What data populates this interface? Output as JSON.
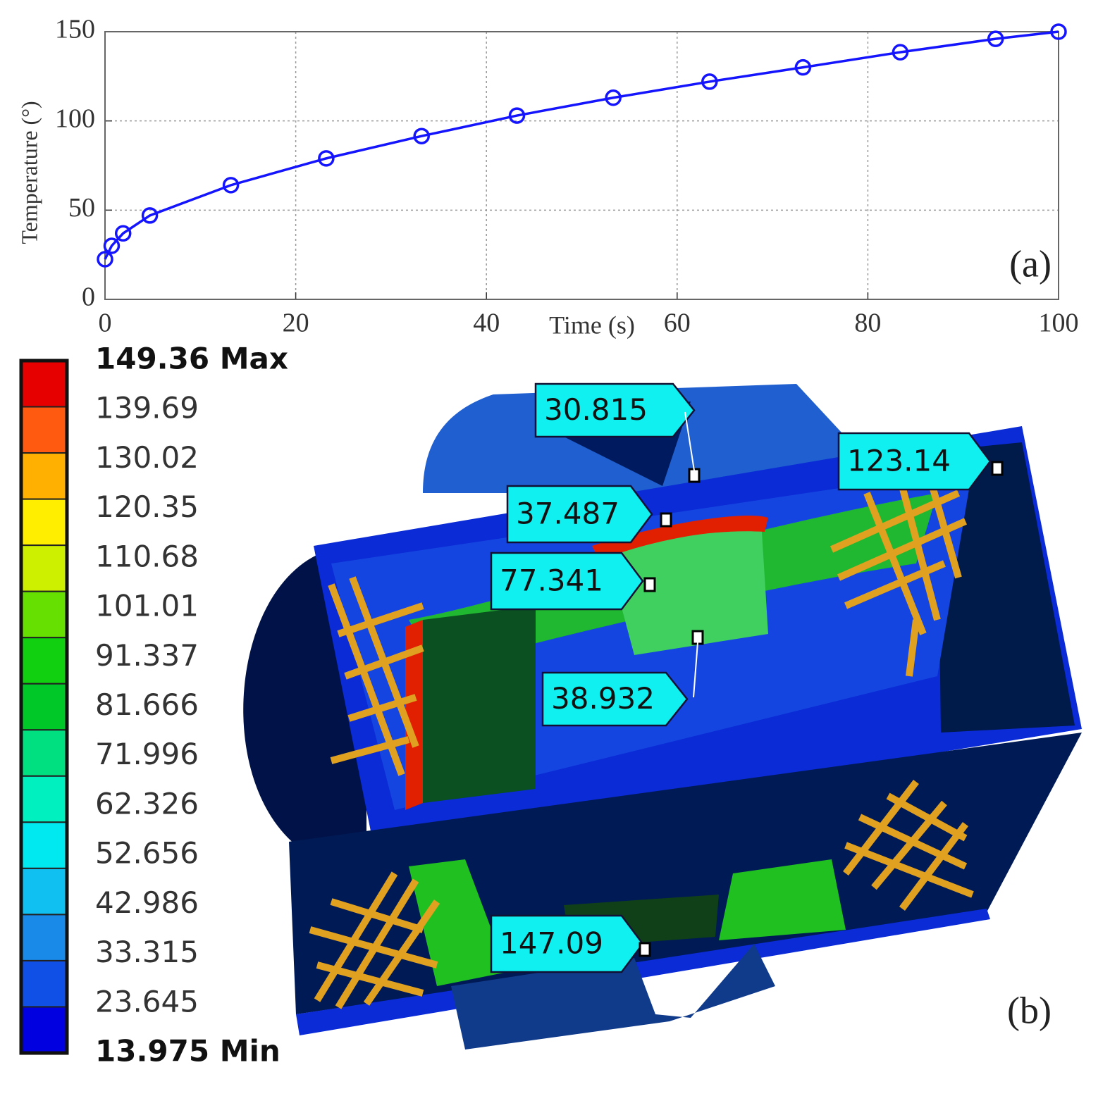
{
  "chart_data": {
    "type": "line",
    "x_label": "Time (s)",
    "y_label": "Temperature (°)",
    "panel_label": "(a)",
    "x": [
      0,
      0.7,
      1.9,
      4.7,
      13.2,
      23.2,
      33.2,
      43.2,
      53.3,
      63.4,
      73.2,
      83.4,
      93.4,
      100
    ],
    "values": [
      22.5,
      30,
      37,
      47,
      64,
      79,
      91.5,
      103,
      113,
      122,
      130,
      138.5,
      146,
      150
    ],
    "color": "#1414ff",
    "xlim": [
      0,
      100
    ],
    "xticks": [
      0,
      20,
      40,
      60,
      80,
      100
    ],
    "ylim": [
      0,
      150
    ],
    "yticks": [
      0,
      50,
      100,
      150
    ],
    "grid": true
  },
  "contour_plot": {
    "panel_label": "(b)",
    "legend_labels": [
      "149.36 Max",
      "139.69",
      "130.02",
      "120.35",
      "110.68",
      "101.01",
      "91.337",
      "81.666",
      "71.996",
      "62.326",
      "52.656",
      "42.986",
      "33.315",
      "23.645",
      "13.975 Min"
    ],
    "legend_colors": [
      "#e60000",
      "#ff5a10",
      "#ffb000",
      "#ffee00",
      "#ccf000",
      "#66e000",
      "#10d010",
      "#00c828",
      "#00e080",
      "#00f0c0",
      "#00e8f0",
      "#10c0f0",
      "#1a8ae8",
      "#1050e6",
      "#0000e0"
    ],
    "probes": [
      "30.815",
      "123.14",
      "37.487",
      "77.341",
      "38.932",
      "147.09"
    ]
  }
}
